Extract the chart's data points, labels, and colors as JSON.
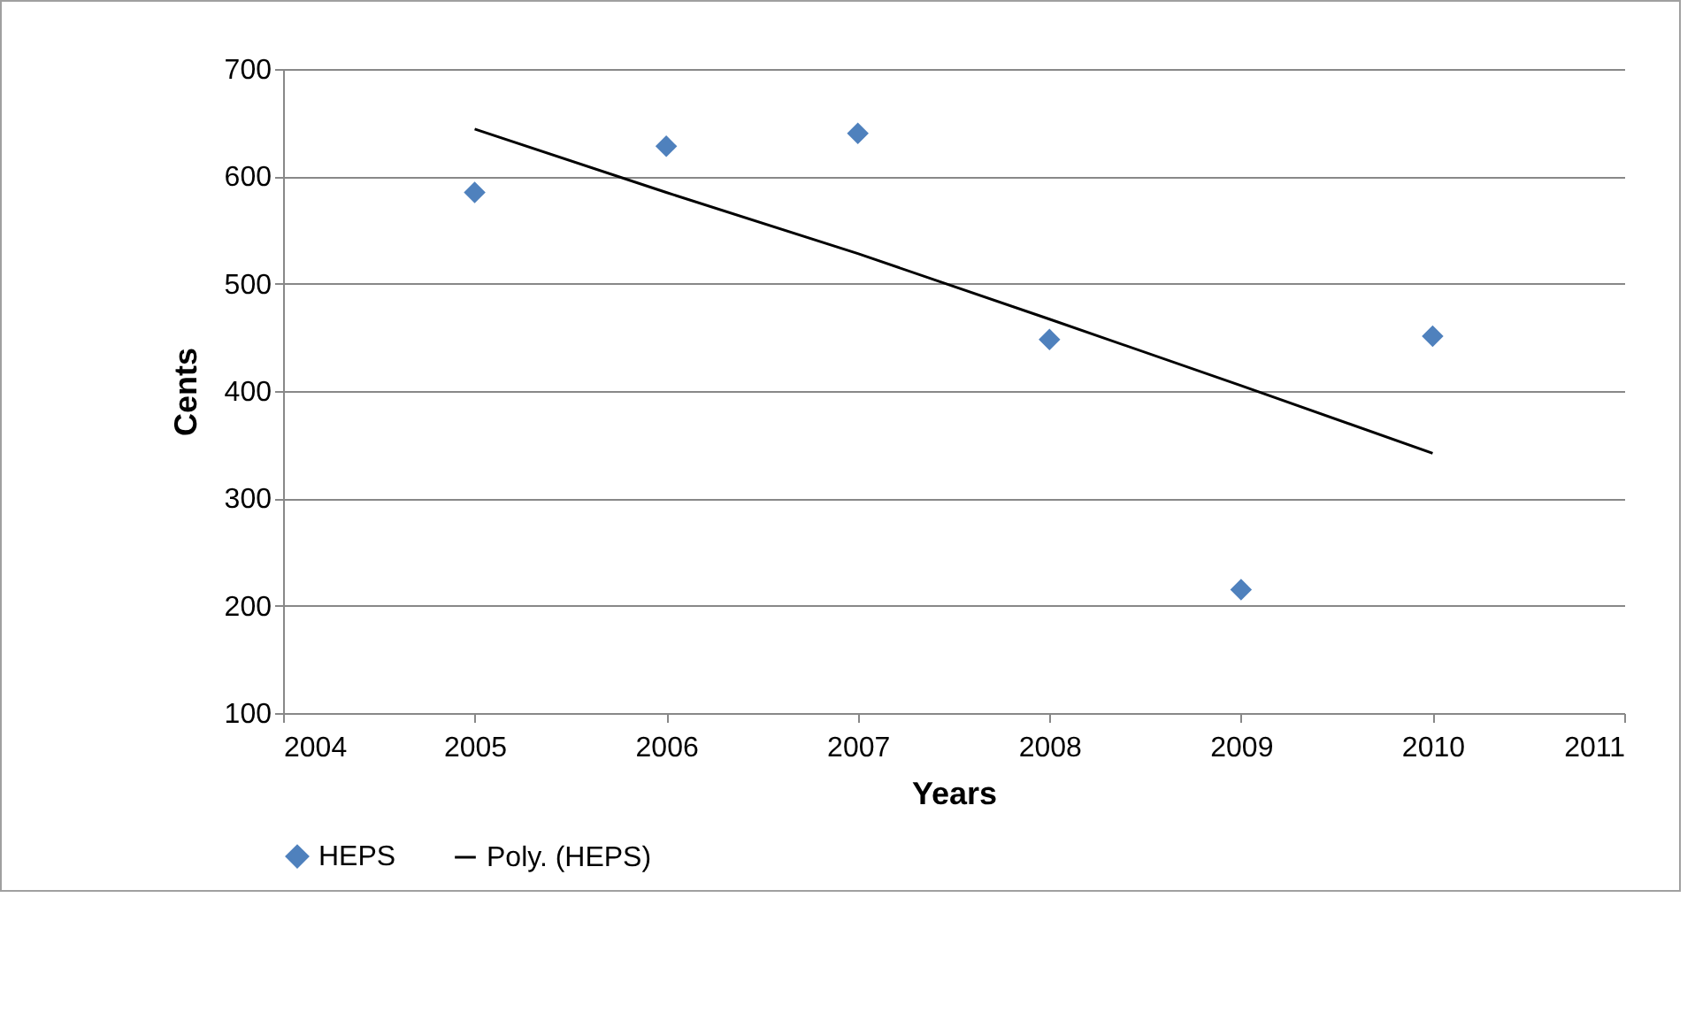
{
  "chart_data": {
    "type": "scatter",
    "xlabel": "Years",
    "ylabel": "Cents",
    "xlim": [
      2004,
      2011
    ],
    "xticks": [
      2004,
      2005,
      2006,
      2007,
      2008,
      2009,
      2010,
      2011
    ],
    "ylim": [
      100,
      700
    ],
    "yticks": [
      100,
      200,
      300,
      400,
      500,
      600,
      700
    ],
    "grid": "y",
    "legend": "bottom",
    "series": [
      {
        "name": "HEPS",
        "marker": "diamond",
        "color": "#4f81bd",
        "x": [
          2005,
          2006,
          2007,
          2008,
          2009,
          2010
        ],
        "values": [
          585,
          628,
          640,
          448,
          215,
          451
        ]
      },
      {
        "name": "Poly. (HEPS)",
        "type": "line",
        "color": "#000000",
        "line_style": "solid",
        "x": [
          2005,
          2006,
          2007,
          2008,
          2009,
          2010
        ],
        "values": [
          644,
          585,
          528,
          467,
          405,
          342
        ]
      }
    ]
  }
}
